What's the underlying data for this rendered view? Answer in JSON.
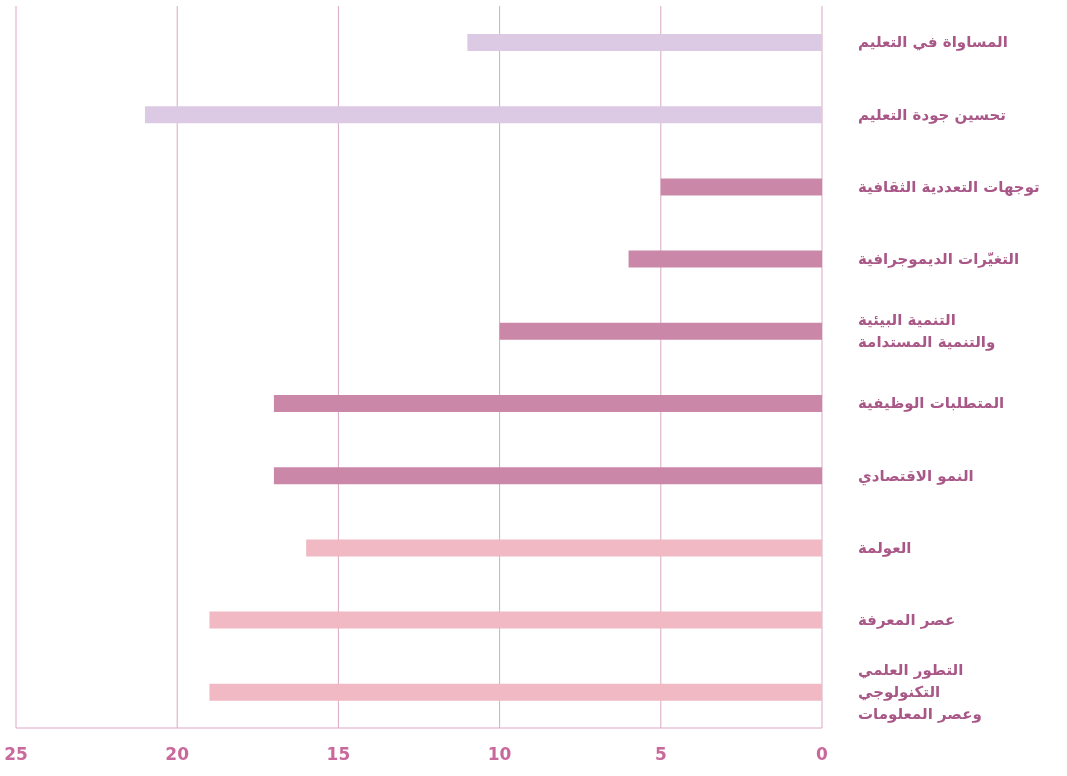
{
  "chart_data": {
    "type": "bar",
    "orientation": "horizontal",
    "categories": [
      "المساواة في التعليم",
      "تحسين جودة التعليم",
      "توجهات التعددية الثقافية",
      "التغيّرات الديموجرافية",
      "التنمية البيئية\nوالتنمية المستدامة",
      "المتطلبات الوظيفية",
      "النمو الاقتصادي",
      "العولمة",
      "عصر المعرفة",
      "التطور العلمي\nالتكنولوجي\nوعصر المعلومات"
    ],
    "values": [
      11,
      21,
      5,
      6,
      10,
      17,
      17,
      16,
      19,
      19
    ],
    "colors": [
      "#dcc9e4",
      "#dcc9e4",
      "#ca87a8",
      "#ca87a8",
      "#ca87a8",
      "#ca87a8",
      "#ca87a8",
      "#f1b9c3",
      "#f1b9c3",
      "#f1b9c3"
    ],
    "xlim": [
      25,
      0
    ],
    "xticks": [
      25,
      20,
      15,
      10,
      5,
      0
    ],
    "grid": "x"
  }
}
